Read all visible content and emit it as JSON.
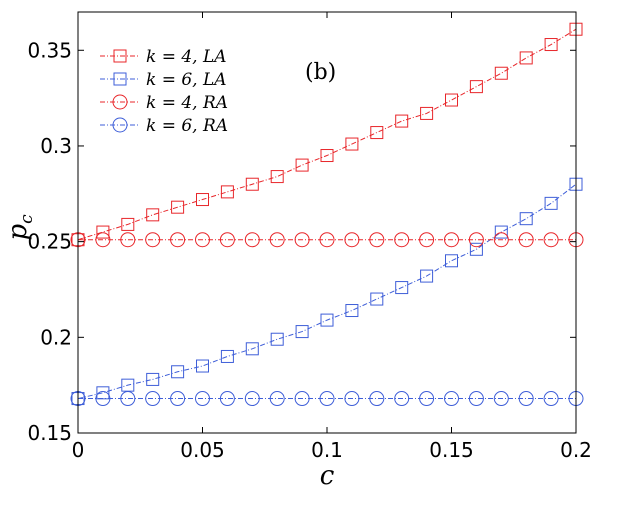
{
  "chart_data": {
    "type": "line",
    "title": "",
    "panel_label": "(b)",
    "xlabel": "c",
    "ylabel": "p",
    "ylabel_sub": "c",
    "xlim": [
      0,
      0.2
    ],
    "ylim": [
      0.15,
      0.37
    ],
    "xticks": [
      0,
      0.05,
      0.1,
      0.15,
      0.2
    ],
    "xtick_labels": [
      "0",
      "0.05",
      "0.1",
      "0.15",
      "0.2"
    ],
    "yticks": [
      0.15,
      0.2,
      0.25,
      0.3,
      0.35
    ],
    "ytick_labels": [
      "0.15",
      "0.2",
      "0.25",
      "0.3",
      "0.35"
    ],
    "grid": false,
    "legend_position": "top-left",
    "x": [
      0,
      0.01,
      0.02,
      0.03,
      0.04,
      0.05,
      0.06,
      0.07,
      0.08,
      0.09,
      0.1,
      0.11,
      0.12,
      0.13,
      0.14,
      0.15,
      0.16,
      0.17,
      0.18,
      0.19,
      0.2
    ],
    "series": [
      {
        "name": "k = 4, LA",
        "legend_k": "k = 4,",
        "legend_m": "LA",
        "color": "#e8262a",
        "marker": "square",
        "values": [
          0.251,
          0.255,
          0.259,
          0.264,
          0.268,
          0.272,
          0.276,
          0.28,
          0.284,
          0.29,
          0.295,
          0.301,
          0.307,
          0.313,
          0.317,
          0.324,
          0.331,
          0.338,
          0.346,
          0.353,
          0.361
        ]
      },
      {
        "name": "k = 6, LA",
        "legend_k": "k = 6,",
        "legend_m": "LA",
        "color": "#3e5ed8",
        "marker": "square",
        "values": [
          0.168,
          0.171,
          0.175,
          0.178,
          0.182,
          0.185,
          0.19,
          0.194,
          0.199,
          0.203,
          0.209,
          0.214,
          0.22,
          0.226,
          0.232,
          0.24,
          0.246,
          0.255,
          0.262,
          0.27,
          0.28
        ]
      },
      {
        "name": "k = 4, RA",
        "legend_k": "k = 4,",
        "legend_m": "RA",
        "color": "#e8262a",
        "marker": "circle",
        "values": [
          0.251,
          0.251,
          0.251,
          0.251,
          0.251,
          0.251,
          0.251,
          0.251,
          0.251,
          0.251,
          0.251,
          0.251,
          0.251,
          0.251,
          0.251,
          0.251,
          0.251,
          0.251,
          0.251,
          0.251,
          0.251
        ]
      },
      {
        "name": "k = 6, RA",
        "legend_k": "k = 6,",
        "legend_m": "RA",
        "color": "#3e5ed8",
        "marker": "circle",
        "values": [
          0.168,
          0.168,
          0.168,
          0.168,
          0.168,
          0.168,
          0.168,
          0.168,
          0.168,
          0.168,
          0.168,
          0.168,
          0.168,
          0.168,
          0.168,
          0.168,
          0.168,
          0.168,
          0.168,
          0.168,
          0.168
        ]
      }
    ]
  }
}
